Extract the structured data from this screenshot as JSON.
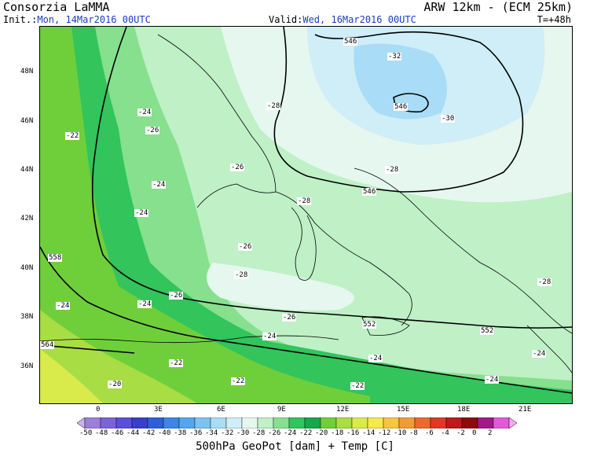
{
  "header": {
    "title": "Consorzia LaMMA",
    "model": "ARW 12km - (ECM 25km)",
    "init_label": "Init.:",
    "init_value": "Mon, 14Mar2016 00UTC",
    "valid_label": "Valid:",
    "valid_value": "Wed, 16Mar2016 00UTC",
    "step": "T=+48h"
  },
  "map": {
    "lat_labels": [
      "48N",
      "46N",
      "44N",
      "42N",
      "40N",
      "38N",
      "36N"
    ],
    "lon_labels": [
      "0",
      "3E",
      "6E",
      "9E",
      "12E",
      "15E",
      "18E",
      "21E"
    ],
    "geopot_labels": [
      "546",
      "546",
      "546",
      "552",
      "552",
      "558",
      "564"
    ],
    "temp_labels": [
      "-32",
      "-30",
      "-28",
      "-28",
      "-28",
      "-28",
      "-28",
      "-26",
      "-26",
      "-26",
      "-26",
      "-26",
      "-24",
      "-24",
      "-24",
      "-24",
      "-24",
      "-24",
      "-24",
      "-24",
      "-24",
      "-22",
      "-22",
      "-22",
      "-22",
      "-20"
    ]
  },
  "colorbar": {
    "ticks": [
      "-50",
      "-48",
      "-46",
      "-44",
      "-42",
      "-40",
      "-38",
      "-36",
      "-34",
      "-32",
      "-30",
      "-28",
      "-26",
      "-24",
      "-22",
      "-20",
      "-18",
      "-16",
      "-14",
      "-12",
      "-10",
      "-8",
      "-6",
      "-4",
      "-2",
      "0",
      "2"
    ],
    "colors": [
      "#9b7fd9",
      "#7b63d9",
      "#5a4fd6",
      "#3a3fc9",
      "#2f5fd8",
      "#3d86e3",
      "#54a6ec",
      "#7cc3f2",
      "#a9dcf6",
      "#cfeef7",
      "#e6f7ef",
      "#bff0c6",
      "#86e08e",
      "#33c45c",
      "#16a84a",
      "#6fcf3b",
      "#a8dd44",
      "#d9ea4b",
      "#f6e94d",
      "#f7c443",
      "#f29b38",
      "#ea6a2e",
      "#de3a26",
      "#bd1a1a",
      "#8e0b0b",
      "#a01a8c",
      "#e25ad8"
    ]
  },
  "footer": "500hPa GeoPot [dam] + Temp [C]"
}
